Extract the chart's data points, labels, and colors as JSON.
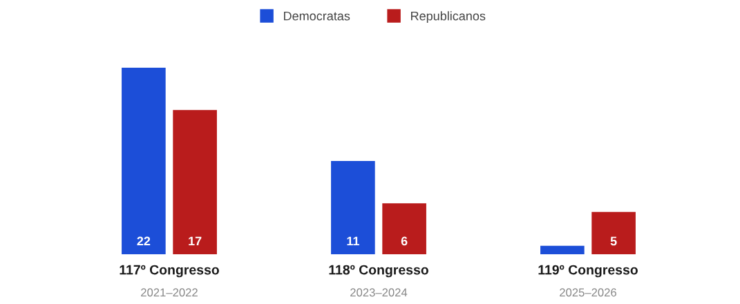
{
  "chart_data": {
    "type": "bar",
    "categories": [
      "117º Congresso\n2021–2022",
      "118º Congresso\n2023–2024",
      "119º Congresso\n2025–2026"
    ],
    "series": [
      {
        "name": "Democratas",
        "color": "#1c4ed8",
        "values": [
          22,
          11,
          1
        ],
        "value_labels": [
          "22",
          "11",
          null
        ]
      },
      {
        "name": "Republicanos",
        "color": "#b91c1c",
        "values": [
          17,
          6,
          5
        ],
        "value_labels": [
          "17",
          "6",
          "5"
        ]
      }
    ],
    "legend": "top"
  }
}
